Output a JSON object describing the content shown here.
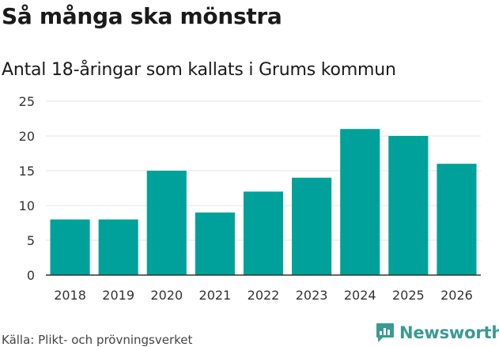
{
  "header": {
    "title": "Så många ska mönstra",
    "subtitle": "Antal 18-åringar som kallats i Grums kommun"
  },
  "footer": {
    "source": "Källa: Plikt- och prövningsverket",
    "brand": "Newsworthy"
  },
  "colors": {
    "bar": "#00a19a",
    "grid": "#e3e3e3",
    "axis": "#333333",
    "brand": "#3a9a93"
  },
  "chart_data": {
    "type": "bar",
    "title": "Så många ska mönstra",
    "subtitle": "Antal 18-åringar som kallats i Grums kommun",
    "xlabel": "",
    "ylabel": "",
    "categories": [
      "2018",
      "2019",
      "2020",
      "2021",
      "2022",
      "2023",
      "2024",
      "2025",
      "2026"
    ],
    "values": [
      8,
      8,
      15,
      9,
      12,
      14,
      21,
      20,
      16
    ],
    "ylim": [
      0,
      25
    ],
    "yticks": [
      0,
      5,
      10,
      15,
      20,
      25
    ],
    "grid": true,
    "legend": "none"
  }
}
